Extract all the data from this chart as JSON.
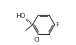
{
  "bg_color": "#ffffff",
  "bond_color": "#1a1a1a",
  "text_color": "#1a1a1a",
  "font_size": 6.5,
  "label_HO": "HO",
  "label_Cl": "Cl",
  "label_F": "F",
  "figsize": [
    1.11,
    0.66
  ],
  "dpi": 100,
  "lw": 0.85
}
